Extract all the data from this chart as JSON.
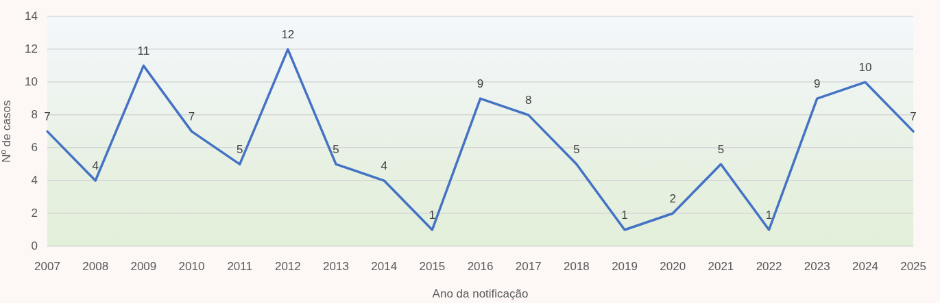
{
  "chart_data": {
    "type": "line",
    "xlabel": "Ano da notificação",
    "ylabel": "Nº de casos",
    "categories": [
      "2007",
      "2008",
      "2009",
      "2010",
      "2011",
      "2012",
      "2013",
      "2014",
      "2015",
      "2016",
      "2017",
      "2018",
      "2019",
      "2020",
      "2021",
      "2022",
      "2023",
      "2024",
      "2025"
    ],
    "series": [
      {
        "color": "#4472c4",
        "values": [
          7,
          4,
          11,
          7,
          5,
          12,
          5,
          4,
          1,
          9,
          8,
          5,
          1,
          2,
          5,
          1,
          9,
          10,
          7
        ]
      }
    ],
    "ylim": [
      0,
      14
    ],
    "yticks": [
      0,
      2,
      4,
      6,
      8,
      10,
      12,
      14
    ],
    "grid": "y",
    "data_labels": true,
    "marker": "none",
    "line_style": "solid"
  }
}
